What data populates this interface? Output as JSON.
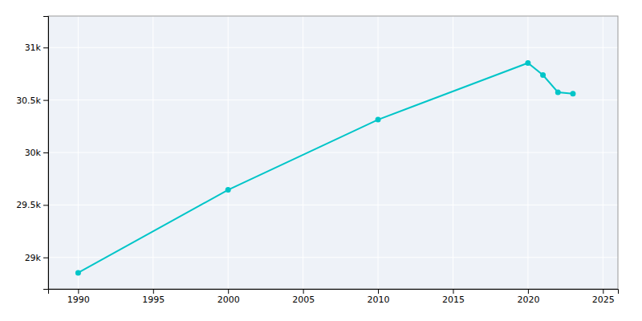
{
  "chart_data": {
    "type": "line",
    "x": [
      1990,
      2000,
      2010,
      2020,
      2021,
      2022,
      2023
    ],
    "values": [
      28853,
      29644,
      30313,
      30853,
      30738,
      30574,
      30561
    ],
    "color": "#00C5C8",
    "marker": "circle",
    "xlim": [
      1988,
      2026
    ],
    "ylim": [
      28700,
      31300
    ],
    "xticks": [
      1990,
      1995,
      2000,
      2005,
      2010,
      2015,
      2020,
      2025
    ],
    "yticks": [
      {
        "value": 29000,
        "label": "29k"
      },
      {
        "value": 29500,
        "label": "29.5k"
      },
      {
        "value": 30000,
        "label": "30k"
      },
      {
        "value": 30500,
        "label": "30.5k"
      },
      {
        "value": 31000,
        "label": "31k"
      }
    ],
    "grid": true
  }
}
